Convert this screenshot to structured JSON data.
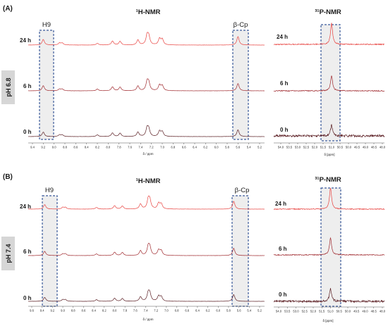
{
  "colors": {
    "spectrum_latest": "#e8423f",
    "spectrum_mid": "#a02a2f",
    "spectrum_early": "#5a1d22",
    "highlight_fill": "#eeeeee",
    "highlight_border": "#3b5a9a",
    "ph_label_bg": "#d6d6d6"
  },
  "panels": [
    {
      "id": "A",
      "label": "(A)",
      "ph_label": "pH 6.8",
      "h_title": "¹H-NMR",
      "p_title": "³¹P-NMR",
      "h_box_labels": [
        "H9",
        "β-Cp"
      ],
      "time_labels": [
        "24 h",
        "6 h",
        "0 h"
      ],
      "h_axis_ticks": [
        "9.4",
        "9.2",
        "9.0",
        "8.8",
        "8.6",
        "8.4",
        "8.2",
        "8.0",
        "7.8",
        "7.6",
        "7.4",
        "7.2",
        "7.0",
        "6.8",
        "6.6",
        "6.4",
        "6.2",
        "6.0",
        "5.8",
        "5.6",
        "5.4",
        "5.2"
      ],
      "h_axis_label": "δ / ppm",
      "p_axis_ticks": [
        "54.0",
        "53.5",
        "53.0",
        "52.5",
        "52.0",
        "51.5",
        "51.0",
        "50.5",
        "50.0",
        "49.5",
        "49.0",
        "48.5",
        "48.0"
      ],
      "p_axis_label": "δ [ppm]"
    },
    {
      "id": "B",
      "label": "(B)",
      "ph_label": "pH 7.4",
      "h_title": "¹H-NMR",
      "p_title": "³¹P-NMR",
      "h_box_labels": [
        "H9",
        "β-Cp"
      ],
      "time_labels": [
        "24 h",
        "6 h",
        "0 h"
      ],
      "h_axis_ticks": [
        "9.6",
        "9.4",
        "9.2",
        "9.0",
        "8.8",
        "8.6",
        "8.4",
        "8.2",
        "8.0",
        "7.8",
        "7.6",
        "7.4",
        "7.2",
        "7.0",
        "6.8",
        "6.6",
        "6.4",
        "6.2",
        "6.0",
        "5.8",
        "5.6",
        "5.4",
        "5.2"
      ],
      "h_axis_label": "δ / ppm",
      "p_axis_ticks": [
        "54.0",
        "53.5",
        "53.0",
        "52.5",
        "52.0",
        "51.5",
        "51.0",
        "50.5",
        "50.0",
        "49.5",
        "49.0",
        "48.5",
        "48.0"
      ],
      "p_axis_label": "δ [ppm]"
    }
  ],
  "chart_data": [
    {
      "type": "line",
      "panel": "A",
      "condition": "pH 6.8",
      "title": "¹H-NMR",
      "xlabel": "δ / ppm",
      "xlim": [
        9.4,
        5.2
      ],
      "series": [
        {
          "name": "24 h",
          "peaks": [
            [
              9.2,
              1.0
            ],
            [
              8.9,
              0.35
            ],
            [
              8.85,
              0.35
            ],
            [
              8.2,
              0.3
            ],
            [
              7.92,
              0.7
            ],
            [
              7.78,
              0.65
            ],
            [
              7.45,
              0.9
            ],
            [
              7.28,
              1.6
            ],
            [
              7.25,
              1.4
            ],
            [
              7.05,
              1.1
            ],
            [
              7.0,
              1.0
            ],
            [
              5.6,
              1.5
            ]
          ]
        },
        {
          "name": "6 h",
          "peaks": [
            [
              9.2,
              0.9
            ],
            [
              8.9,
              0.3
            ],
            [
              8.85,
              0.3
            ],
            [
              8.2,
              0.3
            ],
            [
              7.92,
              0.7
            ],
            [
              7.78,
              0.65
            ],
            [
              7.45,
              0.85
            ],
            [
              7.28,
              1.5
            ],
            [
              7.25,
              1.3
            ],
            [
              7.05,
              1.0
            ],
            [
              7.0,
              0.9
            ],
            [
              5.6,
              1.3
            ]
          ]
        },
        {
          "name": "0 h",
          "peaks": [
            [
              9.2,
              0.8
            ],
            [
              8.9,
              0.3
            ],
            [
              8.85,
              0.3
            ],
            [
              8.2,
              0.3
            ],
            [
              7.92,
              0.65
            ],
            [
              7.78,
              0.6
            ],
            [
              7.45,
              0.8
            ],
            [
              7.28,
              1.4
            ],
            [
              7.25,
              1.2
            ],
            [
              7.05,
              0.95
            ],
            [
              7.0,
              0.85
            ],
            [
              5.6,
              1.2
            ]
          ]
        }
      ]
    },
    {
      "type": "line",
      "panel": "A",
      "condition": "pH 6.8",
      "title": "³¹P-NMR",
      "xlabel": "δ [ppm]",
      "xlim": [
        54.0,
        48.0
      ],
      "series": [
        {
          "name": "24 h",
          "peaks": [
            [
              51.0,
              1.0
            ]
          ]
        },
        {
          "name": "6 h",
          "peaks": [
            [
              51.0,
              0.7
            ]
          ]
        },
        {
          "name": "0 h",
          "peaks": [
            [
              51.0,
              0.5
            ]
          ]
        }
      ]
    },
    {
      "type": "line",
      "panel": "B",
      "condition": "pH 7.4",
      "title": "¹H-NMR",
      "xlabel": "δ / ppm",
      "xlim": [
        9.6,
        5.2
      ],
      "series": [
        {
          "name": "24 h",
          "peaks": [
            [
              9.35,
              0.8
            ],
            [
              9.0,
              0.3
            ],
            [
              8.95,
              0.3
            ],
            [
              8.35,
              0.3
            ],
            [
              8.0,
              0.6
            ],
            [
              7.85,
              0.55
            ],
            [
              7.5,
              0.9
            ],
            [
              7.35,
              1.6
            ],
            [
              7.32,
              1.4
            ],
            [
              7.15,
              1.0
            ],
            [
              7.1,
              0.9
            ],
            [
              5.7,
              1.4
            ]
          ]
        },
        {
          "name": "6 h",
          "peaks": [
            [
              9.35,
              0.75
            ],
            [
              9.0,
              0.3
            ],
            [
              8.95,
              0.3
            ],
            [
              8.35,
              0.3
            ],
            [
              8.0,
              0.6
            ],
            [
              7.85,
              0.55
            ],
            [
              7.5,
              0.85
            ],
            [
              7.35,
              1.5
            ],
            [
              7.32,
              1.3
            ],
            [
              7.15,
              0.95
            ],
            [
              7.1,
              0.85
            ],
            [
              5.7,
              1.3
            ]
          ]
        },
        {
          "name": "0 h",
          "peaks": [
            [
              9.35,
              0.7
            ],
            [
              9.0,
              0.3
            ],
            [
              8.95,
              0.3
            ],
            [
              8.35,
              0.3
            ],
            [
              8.0,
              0.55
            ],
            [
              7.85,
              0.5
            ],
            [
              7.5,
              0.8
            ],
            [
              7.35,
              1.4
            ],
            [
              7.32,
              1.2
            ],
            [
              7.15,
              0.9
            ],
            [
              7.1,
              0.8
            ],
            [
              5.7,
              1.2
            ]
          ]
        }
      ]
    },
    {
      "type": "line",
      "panel": "B",
      "condition": "pH 7.4",
      "title": "³¹P-NMR",
      "xlabel": "δ [ppm]",
      "xlim": [
        54.0,
        48.0
      ],
      "series": [
        {
          "name": "24 h",
          "peaks": [
            [
              51.0,
              1.0
            ]
          ]
        },
        {
          "name": "6 h",
          "peaks": [
            [
              51.0,
              0.8
            ]
          ]
        },
        {
          "name": "0 h",
          "peaks": [
            [
              51.0,
              0.6
            ]
          ]
        }
      ]
    }
  ]
}
